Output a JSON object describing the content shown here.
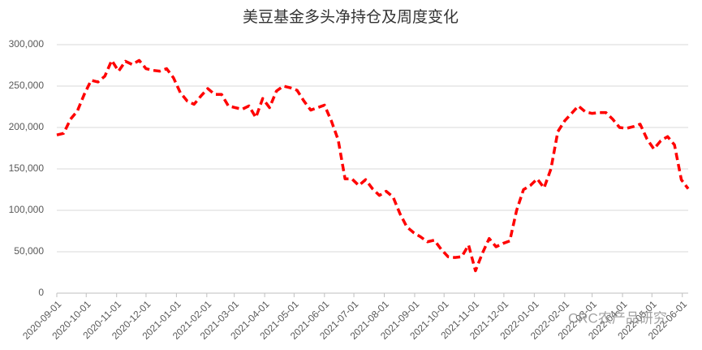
{
  "chart_data": {
    "type": "line",
    "title": "美豆基金多头净持仓及周度变化",
    "watermark": "CRC农产品研究",
    "x": [
      "2020-09-01",
      "2020-09-08",
      "2020-09-15",
      "2020-09-22",
      "2020-09-29",
      "2020-10-06",
      "2020-10-13",
      "2020-10-20",
      "2020-10-27",
      "2020-11-03",
      "2020-11-10",
      "2020-11-17",
      "2020-11-24",
      "2020-12-01",
      "2020-12-08",
      "2020-12-15",
      "2020-12-22",
      "2020-12-29",
      "2021-01-05",
      "2021-01-12",
      "2021-01-19",
      "2021-01-26",
      "2021-02-02",
      "2021-02-09",
      "2021-02-16",
      "2021-02-23",
      "2021-03-02",
      "2021-03-09",
      "2021-03-16",
      "2021-03-23",
      "2021-03-30",
      "2021-04-06",
      "2021-04-13",
      "2021-04-20",
      "2021-04-27",
      "2021-05-04",
      "2021-05-11",
      "2021-05-18",
      "2021-05-25",
      "2021-06-01",
      "2021-06-08",
      "2021-06-15",
      "2021-06-22",
      "2021-06-29",
      "2021-07-06",
      "2021-07-13",
      "2021-07-20",
      "2021-07-27",
      "2021-08-03",
      "2021-08-10",
      "2021-08-17",
      "2021-08-24",
      "2021-08-31",
      "2021-09-07",
      "2021-09-14",
      "2021-09-21",
      "2021-09-28",
      "2021-10-05",
      "2021-10-12",
      "2021-10-19",
      "2021-10-26",
      "2021-11-02",
      "2021-11-09",
      "2021-11-16",
      "2021-11-23",
      "2021-11-30",
      "2021-12-07",
      "2021-12-14",
      "2021-12-21",
      "2021-12-28",
      "2022-01-04",
      "2022-01-11",
      "2022-01-18",
      "2022-01-25",
      "2022-02-01",
      "2022-02-08",
      "2022-02-15",
      "2022-02-22",
      "2022-03-01",
      "2022-03-08",
      "2022-03-15",
      "2022-03-22",
      "2022-03-29",
      "2022-04-05",
      "2022-04-12",
      "2022-04-19",
      "2022-04-26",
      "2022-05-03",
      "2022-05-10",
      "2022-05-17",
      "2022-05-24",
      "2022-05-31",
      "2022-06-07"
    ],
    "series": [
      {
        "color": "#ff0000",
        "values": [
          191000,
          193000,
          210000,
          220000,
          240000,
          257000,
          255000,
          262000,
          281000,
          268000,
          280000,
          276000,
          281000,
          271000,
          269000,
          268000,
          271000,
          260000,
          242000,
          232000,
          228000,
          238000,
          247000,
          240000,
          240000,
          226000,
          224000,
          222000,
          226000,
          212000,
          235000,
          224000,
          244000,
          250000,
          248000,
          245000,
          232000,
          221000,
          224000,
          227000,
          208000,
          185000,
          138000,
          138000,
          130000,
          137000,
          126000,
          118000,
          123000,
          116000,
          96000,
          80000,
          73000,
          68000,
          62000,
          64000,
          53000,
          44000,
          43000,
          44000,
          58000,
          27000,
          48000,
          66000,
          56000,
          60000,
          63000,
          100000,
          125000,
          130000,
          138000,
          127000,
          150000,
          195000,
          208000,
          217000,
          226000,
          219000,
          217000,
          218000,
          218000,
          210000,
          200000,
          199000,
          201000,
          204000,
          186000,
          174000,
          184000,
          189000,
          179000,
          137000,
          126000
        ]
      }
    ],
    "xlim": [
      "2020-09-01",
      "2022-06-07"
    ],
    "xticks": [
      "2020-09-01",
      "2020-10-01",
      "2020-11-01",
      "2020-12-01",
      "2021-01-01",
      "2021-02-01",
      "2021-03-01",
      "2021-04-01",
      "2021-05-01",
      "2021-06-01",
      "2021-07-01",
      "2021-08-01",
      "2021-09-01",
      "2021-10-01",
      "2021-11-01",
      "2021-12-01",
      "2022-01-01",
      "2022-02-01",
      "2022-03-01",
      "2022-04-01",
      "2022-05-01",
      "2022-06-01"
    ],
    "ylim": [
      0,
      300000
    ],
    "yticks": [
      0,
      {
        "value": 50000,
        "label": "50,000"
      },
      {
        "value": 100000,
        "label": "100,000"
      },
      {
        "value": 150000,
        "label": "150,000"
      },
      {
        "value": 200000,
        "label": "200,000"
      },
      {
        "value": 250000,
        "label": "250,000"
      },
      {
        "value": 300000,
        "label": "300,000"
      }
    ],
    "grid": true
  }
}
